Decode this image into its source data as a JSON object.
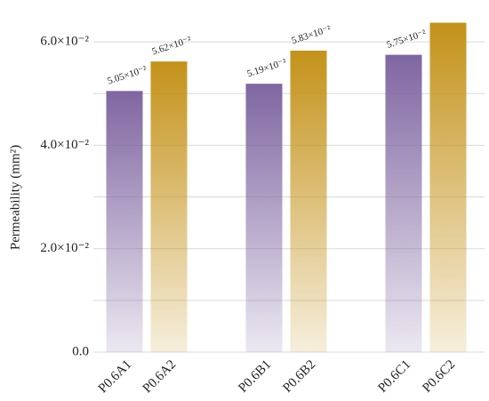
{
  "chart_data": {
    "type": "bar",
    "y_label": "Permeability (mm²)",
    "categories": [
      "P0.6A1",
      "P0.6A2",
      "P0.6B1",
      "P0.6B2",
      "P0.6C1",
      "P0.6C2"
    ],
    "values": [
      0.0505,
      0.0562,
      0.0519,
      0.0583,
      0.0575,
      0.0637
    ],
    "value_labels": [
      "5.05×10⁻²",
      "5.62×10⁻²",
      "5.19×10⁻²",
      "5.83×10⁻²",
      "5.75×10⁻²",
      null
    ],
    "colors": [
      "#7f66a1",
      "#c4921a",
      "#7f66a1",
      "#c4921a",
      "#7f66a1",
      "#c4921a"
    ],
    "ylim": [
      0,
      0.065
    ],
    "yticks": [
      {
        "value": 0,
        "label": "0.0"
      },
      {
        "value": 0.02,
        "label": "2.0×10⁻²"
      },
      {
        "value": 0.04,
        "label": "4.0×10⁻²"
      },
      {
        "value": 0.06,
        "label": "6.0×10⁻²"
      }
    ],
    "minor_yticks": [
      0.01,
      0.03,
      0.05
    ],
    "grid": true
  }
}
